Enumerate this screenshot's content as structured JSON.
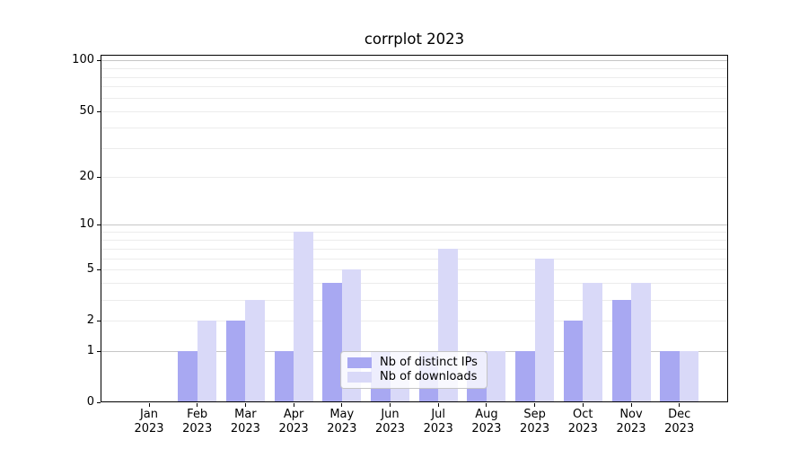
{
  "chart_data": {
    "type": "bar",
    "title": "corrplot 2023",
    "categories": [
      "Jan",
      "Feb",
      "Mar",
      "Apr",
      "May",
      "Jun",
      "Jul",
      "Aug",
      "Sep",
      "Oct",
      "Nov",
      "Dec"
    ],
    "x_year": "2023",
    "series": [
      {
        "name": "Nb of distinct IPs",
        "color": "#a8a8f2",
        "values": [
          0,
          1,
          2,
          1,
          4,
          1,
          1,
          1,
          1,
          2,
          3,
          1
        ]
      },
      {
        "name": "Nb of downloads",
        "color": "#d9d9f8",
        "values": [
          0,
          2,
          3,
          9,
          5,
          1,
          7,
          1,
          6,
          4,
          4,
          1
        ]
      }
    ],
    "xlabel": "",
    "ylabel": "",
    "y_scale": "log1p",
    "ylim": [
      0,
      108
    ],
    "y_ticks": [
      0,
      1,
      2,
      5,
      10,
      20,
      50,
      100
    ],
    "gridlines": {
      "major": [
        1,
        10,
        100
      ],
      "minor": [
        2,
        3,
        4,
        5,
        6,
        7,
        8,
        9,
        20,
        30,
        40,
        50,
        60,
        70,
        80,
        90
      ]
    },
    "legend": {
      "position": "inside-bottom-center"
    },
    "colors": {
      "major_grid": "#c6c6c6",
      "minor_grid": "#ececec",
      "axis": "#000000",
      "background": "#ffffff"
    }
  }
}
